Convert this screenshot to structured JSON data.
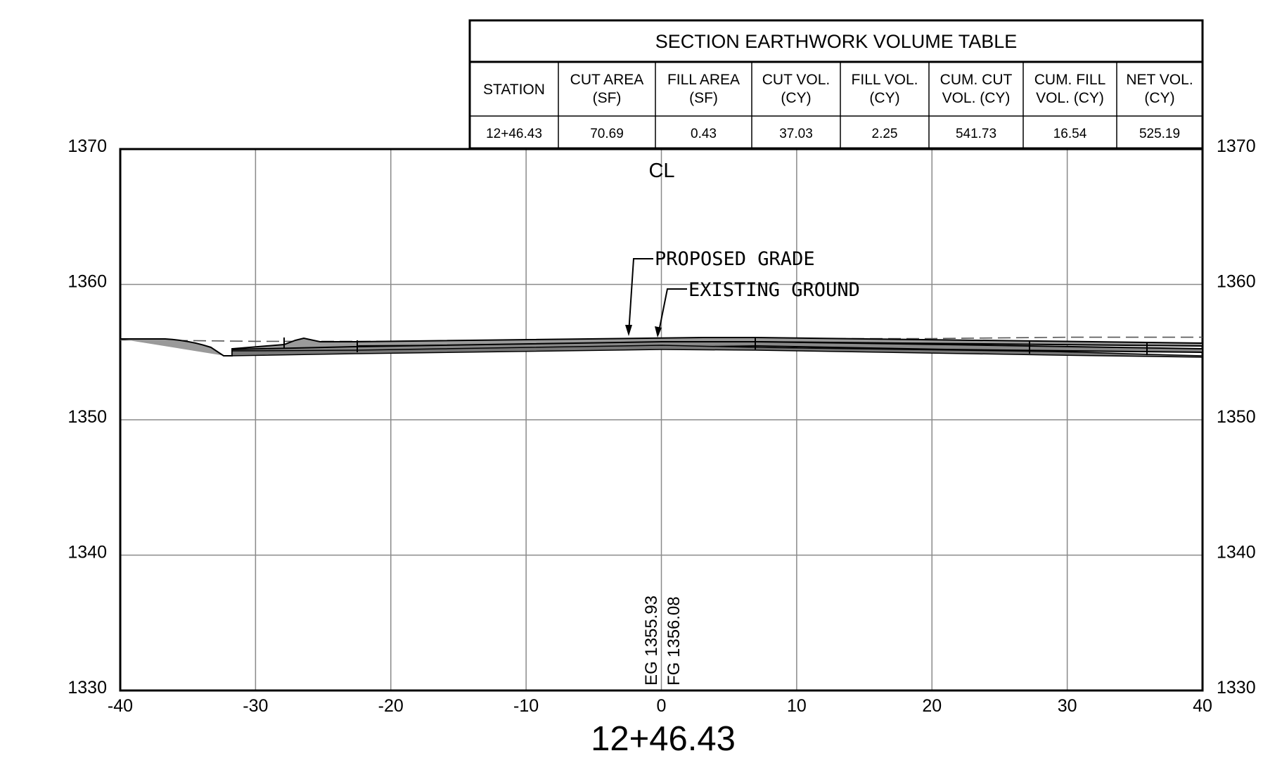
{
  "table": {
    "title": "SECTION EARTHWORK VOLUME TABLE",
    "headers": [
      [
        "STATION"
      ],
      [
        "CUT AREA",
        "(SF)"
      ],
      [
        "FILL AREA",
        "(SF)"
      ],
      [
        "CUT VOL.",
        "(CY)"
      ],
      [
        "FILL VOL.",
        "(CY)"
      ],
      [
        "CUM. CUT",
        "VOL. (CY)"
      ],
      [
        "CUM. FILL",
        "VOL. (CY)"
      ],
      [
        "NET VOL.",
        "(CY)"
      ]
    ],
    "row": [
      "12+46.43",
      "70.69",
      "0.43",
      "37.03",
      "2.25",
      "541.73",
      "16.54",
      "525.19"
    ]
  },
  "chart_data": {
    "type": "line",
    "x_ticks": [
      "-40",
      "-30",
      "-20",
      "-10",
      "0",
      "10",
      "20",
      "30",
      "40"
    ],
    "y_ticks_left": [
      "1370",
      "1360",
      "1350",
      "1340",
      "1330"
    ],
    "y_ticks_right": [
      "1370",
      "1360",
      "1350",
      "1340",
      "1330"
    ],
    "xlim": [
      -40,
      40
    ],
    "ylim": [
      1330,
      1370
    ],
    "grid": true,
    "centerline_label": "CL",
    "station_label": "12+46.43",
    "annotations": {
      "proposed_grade": "PROPOSED GRADE",
      "existing_ground": "EXISTING GROUND",
      "eg_elevation": "EG 1355.93",
      "fg_elevation": "FG 1356.08"
    },
    "series": [
      {
        "name": "EXISTING GROUND",
        "style": "dashed",
        "x": [
          -40,
          -30,
          -20,
          -10,
          0,
          10,
          20,
          30,
          40
        ],
        "y": [
          1355.9,
          1355.8,
          1355.8,
          1355.9,
          1355.93,
          1356.0,
          1356.0,
          1356.1,
          1356.1
        ]
      },
      {
        "name": "PROPOSED GRADE",
        "style": "solid",
        "x": [
          -40,
          -34,
          -32,
          -26.5,
          -25,
          -10,
          0,
          10,
          20,
          30,
          40
        ],
        "y": [
          1356.0,
          1355.8,
          1354.8,
          1356.0,
          1355.7,
          1355.9,
          1356.08,
          1355.9,
          1355.8,
          1355.6,
          1355.5
        ]
      }
    ]
  }
}
